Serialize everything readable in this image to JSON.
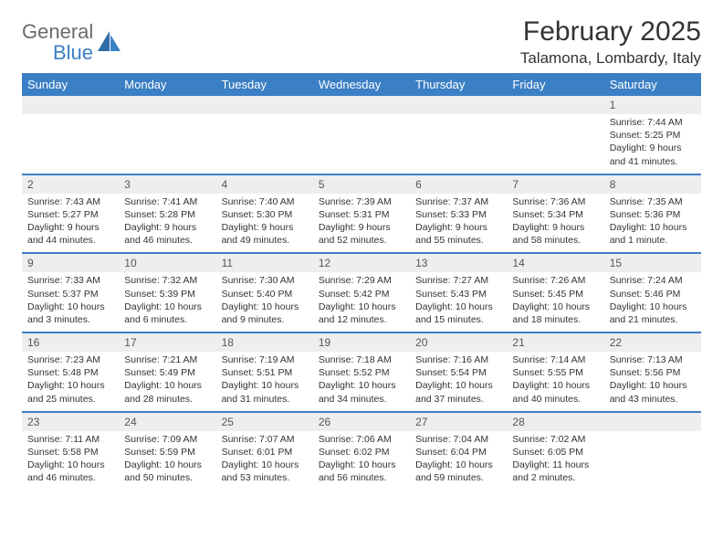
{
  "brand": {
    "word1": "General",
    "word2": "Blue"
  },
  "title": "February 2025",
  "location": "Talamona, Lombardy, Italy",
  "colors": {
    "accent": "#3b7fc4",
    "header_text": "#ffffff",
    "daynum_bg": "#eeeeee",
    "body_text": "#333333",
    "logo_grey": "#6b6b6b"
  },
  "typography": {
    "title_fontsize": 30,
    "location_fontsize": 17,
    "dayhead_fontsize": 13,
    "daynum_fontsize": 12,
    "body_fontsize": 10.5
  },
  "day_headers": [
    "Sunday",
    "Monday",
    "Tuesday",
    "Wednesday",
    "Thursday",
    "Friday",
    "Saturday"
  ],
  "weeks": [
    [
      {
        "n": "",
        "lines": []
      },
      {
        "n": "",
        "lines": []
      },
      {
        "n": "",
        "lines": []
      },
      {
        "n": "",
        "lines": []
      },
      {
        "n": "",
        "lines": []
      },
      {
        "n": "",
        "lines": []
      },
      {
        "n": "1",
        "lines": [
          "Sunrise: 7:44 AM",
          "Sunset: 5:25 PM",
          "Daylight: 9 hours and 41 minutes."
        ]
      }
    ],
    [
      {
        "n": "2",
        "lines": [
          "Sunrise: 7:43 AM",
          "Sunset: 5:27 PM",
          "Daylight: 9 hours and 44 minutes."
        ]
      },
      {
        "n": "3",
        "lines": [
          "Sunrise: 7:41 AM",
          "Sunset: 5:28 PM",
          "Daylight: 9 hours and 46 minutes."
        ]
      },
      {
        "n": "4",
        "lines": [
          "Sunrise: 7:40 AM",
          "Sunset: 5:30 PM",
          "Daylight: 9 hours and 49 minutes."
        ]
      },
      {
        "n": "5",
        "lines": [
          "Sunrise: 7:39 AM",
          "Sunset: 5:31 PM",
          "Daylight: 9 hours and 52 minutes."
        ]
      },
      {
        "n": "6",
        "lines": [
          "Sunrise: 7:37 AM",
          "Sunset: 5:33 PM",
          "Daylight: 9 hours and 55 minutes."
        ]
      },
      {
        "n": "7",
        "lines": [
          "Sunrise: 7:36 AM",
          "Sunset: 5:34 PM",
          "Daylight: 9 hours and 58 minutes."
        ]
      },
      {
        "n": "8",
        "lines": [
          "Sunrise: 7:35 AM",
          "Sunset: 5:36 PM",
          "Daylight: 10 hours and 1 minute."
        ]
      }
    ],
    [
      {
        "n": "9",
        "lines": [
          "Sunrise: 7:33 AM",
          "Sunset: 5:37 PM",
          "Daylight: 10 hours and 3 minutes."
        ]
      },
      {
        "n": "10",
        "lines": [
          "Sunrise: 7:32 AM",
          "Sunset: 5:39 PM",
          "Daylight: 10 hours and 6 minutes."
        ]
      },
      {
        "n": "11",
        "lines": [
          "Sunrise: 7:30 AM",
          "Sunset: 5:40 PM",
          "Daylight: 10 hours and 9 minutes."
        ]
      },
      {
        "n": "12",
        "lines": [
          "Sunrise: 7:29 AM",
          "Sunset: 5:42 PM",
          "Daylight: 10 hours and 12 minutes."
        ]
      },
      {
        "n": "13",
        "lines": [
          "Sunrise: 7:27 AM",
          "Sunset: 5:43 PM",
          "Daylight: 10 hours and 15 minutes."
        ]
      },
      {
        "n": "14",
        "lines": [
          "Sunrise: 7:26 AM",
          "Sunset: 5:45 PM",
          "Daylight: 10 hours and 18 minutes."
        ]
      },
      {
        "n": "15",
        "lines": [
          "Sunrise: 7:24 AM",
          "Sunset: 5:46 PM",
          "Daylight: 10 hours and 21 minutes."
        ]
      }
    ],
    [
      {
        "n": "16",
        "lines": [
          "Sunrise: 7:23 AM",
          "Sunset: 5:48 PM",
          "Daylight: 10 hours and 25 minutes."
        ]
      },
      {
        "n": "17",
        "lines": [
          "Sunrise: 7:21 AM",
          "Sunset: 5:49 PM",
          "Daylight: 10 hours and 28 minutes."
        ]
      },
      {
        "n": "18",
        "lines": [
          "Sunrise: 7:19 AM",
          "Sunset: 5:51 PM",
          "Daylight: 10 hours and 31 minutes."
        ]
      },
      {
        "n": "19",
        "lines": [
          "Sunrise: 7:18 AM",
          "Sunset: 5:52 PM",
          "Daylight: 10 hours and 34 minutes."
        ]
      },
      {
        "n": "20",
        "lines": [
          "Sunrise: 7:16 AM",
          "Sunset: 5:54 PM",
          "Daylight: 10 hours and 37 minutes."
        ]
      },
      {
        "n": "21",
        "lines": [
          "Sunrise: 7:14 AM",
          "Sunset: 5:55 PM",
          "Daylight: 10 hours and 40 minutes."
        ]
      },
      {
        "n": "22",
        "lines": [
          "Sunrise: 7:13 AM",
          "Sunset: 5:56 PM",
          "Daylight: 10 hours and 43 minutes."
        ]
      }
    ],
    [
      {
        "n": "23",
        "lines": [
          "Sunrise: 7:11 AM",
          "Sunset: 5:58 PM",
          "Daylight: 10 hours and 46 minutes."
        ]
      },
      {
        "n": "24",
        "lines": [
          "Sunrise: 7:09 AM",
          "Sunset: 5:59 PM",
          "Daylight: 10 hours and 50 minutes."
        ]
      },
      {
        "n": "25",
        "lines": [
          "Sunrise: 7:07 AM",
          "Sunset: 6:01 PM",
          "Daylight: 10 hours and 53 minutes."
        ]
      },
      {
        "n": "26",
        "lines": [
          "Sunrise: 7:06 AM",
          "Sunset: 6:02 PM",
          "Daylight: 10 hours and 56 minutes."
        ]
      },
      {
        "n": "27",
        "lines": [
          "Sunrise: 7:04 AM",
          "Sunset: 6:04 PM",
          "Daylight: 10 hours and 59 minutes."
        ]
      },
      {
        "n": "28",
        "lines": [
          "Sunrise: 7:02 AM",
          "Sunset: 6:05 PM",
          "Daylight: 11 hours and 2 minutes."
        ]
      },
      {
        "n": "",
        "lines": []
      }
    ]
  ]
}
